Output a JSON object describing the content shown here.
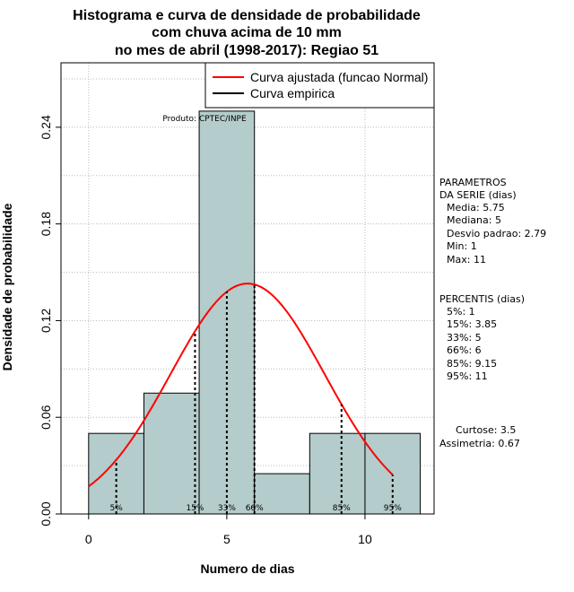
{
  "chart_data": {
    "type": "bar",
    "title_lines": [
      "Histograma e curva de densidade de probabilidade",
      "com chuva acima de 10 mm",
      "no mes de abril (1998-2017): Regiao 51"
    ],
    "xlabel": "Numero de dias",
    "ylabel": "Densidade de probabilidade",
    "xlim": [
      -1,
      12.5
    ],
    "ylim": [
      0,
      0.28
    ],
    "x_ticks": [
      0,
      5,
      10
    ],
    "y_ticks": [
      0.0,
      0.06,
      0.12,
      0.18,
      0.24
    ],
    "y_tick_labels": [
      "0.00",
      "0.06",
      "0.12",
      "0.18",
      "0.24"
    ],
    "grid": true,
    "bar_color": "#b4cccb",
    "bins": [
      {
        "x0": 0,
        "x1": 2,
        "density": 0.05
      },
      {
        "x0": 2,
        "x1": 4,
        "density": 0.075
      },
      {
        "x0": 4,
        "x1": 6,
        "density": 0.25
      },
      {
        "x0": 6,
        "x1": 8,
        "density": 0.025
      },
      {
        "x0": 8,
        "x1": 10,
        "density": 0.05
      },
      {
        "x0": 10,
        "x1": 12,
        "density": 0.05
      }
    ],
    "normal_curve": {
      "mean": 5.75,
      "sd": 2.79,
      "x_from": 0,
      "x_to": 11,
      "color": "#ff0000"
    },
    "percentile_lines": [
      {
        "label": "5%",
        "x": 1
      },
      {
        "label": "15%",
        "x": 3.85
      },
      {
        "label": "33%",
        "x": 5
      },
      {
        "label": "66%",
        "x": 6
      },
      {
        "label": "85%",
        "x": 9.15
      },
      {
        "label": "95%",
        "x": 11
      }
    ],
    "legend": {
      "position": "top-right",
      "entries": [
        {
          "label": "Curva ajustada (funcao Normal)",
          "color": "#ff0000"
        },
        {
          "label": "Curva empirica",
          "color": "#000000"
        }
      ]
    },
    "annotation": "Produto: CPTEC/INPE"
  },
  "side_panel": {
    "parametros": [
      "PARAMETROS",
      "DA SERIE (dias)",
      "Media: 5.75",
      "Mediana: 5",
      "Desvio padrao: 2.79",
      "Min: 1",
      "Max: 11"
    ],
    "percentis": [
      "PERCENTIS (dias)",
      "5%: 1",
      "15%: 3.85",
      "33%: 5",
      "66%: 6",
      "85%: 9.15",
      "95%: 11"
    ],
    "stats": [
      "Curtose: 3.5",
      "Assimetria: 0.67"
    ]
  }
}
